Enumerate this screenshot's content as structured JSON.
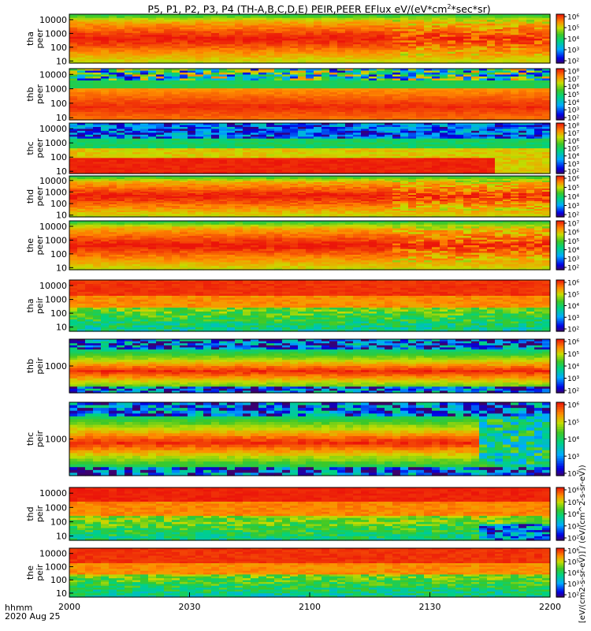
{
  "chart_data": {
    "type": "heatmap",
    "title": "P5, P1, P2, P3, P4 (TH-A,B,C,D,E) PEIR,PEER EFlux eV/(eV*cm",
    "title_sup": "2",
    "title_tail": "*sec*sr)",
    "xlabel": "hhmm",
    "date_label": "2020 Aug 25",
    "x_ticks": [
      "2000",
      "2030",
      "2100",
      "2130",
      "2200"
    ],
    "x_range_min": [
      0,
      120
    ],
    "colorbar": {
      "cmap": "rainbow",
      "min_exponent": 2,
      "max_exponent": 8,
      "title": "[eV/(cm2-s-sr-eV)] / (eV/(cm^2-s-sr-eV))"
    },
    "panels": [
      {
        "id": "tha-peer",
        "line1": "tha",
        "line2": "peer",
        "y_ticks": [
          "10000",
          "1000",
          "100",
          "10"
        ],
        "y_range_eV": [
          7,
          25000
        ],
        "pattern": "electron",
        "colorbar_ticks": [
          "10⁶",
          "10⁵",
          "10⁴",
          "10³",
          "10²"
        ]
      },
      {
        "id": "thb-peer",
        "line1": "thb",
        "line2": "peer",
        "y_ticks": [
          "10000",
          "1000",
          "100",
          "10"
        ],
        "y_range_eV": [
          7,
          25000
        ],
        "pattern": "thb_e",
        "colorbar_ticks": [
          "10⁸",
          "10⁷",
          "10⁶",
          "10⁵",
          "10⁴",
          "10³",
          "10²"
        ]
      },
      {
        "id": "thc-peer",
        "line1": "thc",
        "line2": "peer",
        "y_ticks": [
          "10000",
          "1000",
          "100",
          "10"
        ],
        "y_range_eV": [
          7,
          25000
        ],
        "pattern": "thc_e",
        "colorbar_ticks": [
          "10⁸",
          "10⁷",
          "10⁶",
          "10⁵",
          "10⁴",
          "10³",
          "10²"
        ]
      },
      {
        "id": "thd-peer",
        "line1": "thd",
        "line2": "peer",
        "y_ticks": [
          "10000",
          "1000",
          "100",
          "10"
        ],
        "y_range_eV": [
          7,
          25000
        ],
        "pattern": "electron",
        "colorbar_ticks": [
          "10⁶",
          "10⁵",
          "10⁴",
          "10³",
          "10²"
        ]
      },
      {
        "id": "the-peer",
        "line1": "the",
        "line2": "peer",
        "y_ticks": [
          "10000",
          "1000",
          "100",
          "10"
        ],
        "y_range_eV": [
          7,
          25000
        ],
        "pattern": "electron",
        "colorbar_ticks": [
          "10⁷",
          "10⁶",
          "10⁵",
          "10⁴",
          "10³",
          "10²"
        ]
      },
      {
        "id": "tha-peir",
        "line1": "tha",
        "line2": "peir",
        "y_ticks": [
          "10000",
          "1000",
          "100",
          "10"
        ],
        "y_range_eV": [
          5,
          25000
        ],
        "pattern": "ion",
        "colorbar_ticks": [
          "10⁶",
          "10⁵",
          "10⁴",
          "10³",
          "10²"
        ]
      },
      {
        "id": "thb-peir",
        "line1": "thb",
        "line2": "peir",
        "y_ticks": [
          "1000"
        ],
        "y_range_eV": [
          100,
          10000
        ],
        "pattern": "thb_i",
        "colorbar_ticks": [
          "10⁶",
          "10⁵",
          "10⁴",
          "10³",
          "10²"
        ]
      },
      {
        "id": "thc-peir",
        "line1": "thc",
        "line2": "peir",
        "y_ticks": [
          "1000"
        ],
        "y_range_eV": [
          100,
          10000
        ],
        "pattern": "thc_i",
        "colorbar_ticks": [
          "10⁶",
          "10⁵",
          "10⁴",
          "10³",
          "10²"
        ]
      },
      {
        "id": "thd-peir",
        "line1": "thd",
        "line2": "peir",
        "y_ticks": [
          "10000",
          "1000",
          "100",
          "10"
        ],
        "y_range_eV": [
          5,
          25000
        ],
        "pattern": "ion_d",
        "colorbar_ticks": [
          "10⁶",
          "10⁵",
          "10⁴",
          "10³",
          "10²"
        ]
      },
      {
        "id": "the-peir",
        "line1": "the",
        "line2": "peir",
        "y_ticks": [
          "10000",
          "1000",
          "100",
          "10"
        ],
        "y_range_eV": [
          5,
          25000
        ],
        "pattern": "ion",
        "colorbar_ticks": [
          "10⁶",
          "10⁵",
          "10⁴",
          "10³",
          "10²"
        ]
      }
    ]
  }
}
